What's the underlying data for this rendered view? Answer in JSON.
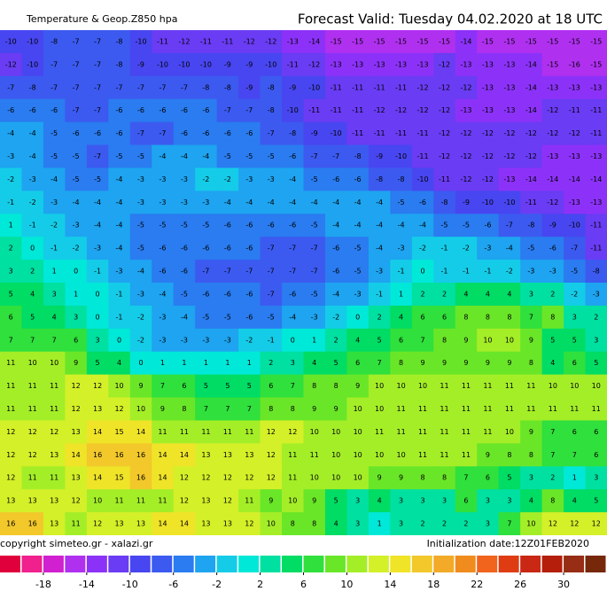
{
  "header": {
    "title": "Temperature & Geop.Z850 hpa",
    "forecast": "Forecast Valid:  Tuesday 04.02.2020 at 18 UTC"
  },
  "map": {
    "rows": [
      [
        -10,
        -10,
        -8,
        -7,
        -7,
        -8,
        -10,
        -11,
        -12,
        -11,
        -11,
        -12,
        -12,
        -13,
        -14,
        -15,
        -15,
        -15,
        -15,
        -15,
        -15,
        -14,
        -15,
        -15,
        -15,
        -15,
        -15,
        -15
      ],
      [
        -12,
        -10,
        -7,
        -7,
        -7,
        -8,
        -9,
        -10,
        -10,
        -10,
        -9,
        -9,
        -10,
        -11,
        -12,
        -13,
        -13,
        -13,
        -13,
        -13,
        -12,
        -13,
        -13,
        -13,
        -14,
        -15,
        -16,
        -15
      ],
      [
        -7,
        -8,
        -7,
        -7,
        -7,
        -7,
        -7,
        -7,
        -7,
        -8,
        -8,
        -9,
        -8,
        -9,
        -10,
        -11,
        -11,
        -11,
        -11,
        -12,
        -12,
        -12,
        -13,
        -13,
        -14,
        -13,
        -13,
        -13
      ],
      [
        -6,
        -6,
        -6,
        -7,
        -7,
        -6,
        -6,
        -6,
        -6,
        -6,
        -7,
        -7,
        -8,
        -10,
        -11,
        -11,
        -11,
        -12,
        -12,
        -12,
        -12,
        -13,
        -13,
        -13,
        -14,
        -12,
        -11,
        -11
      ],
      [
        -4,
        -4,
        -5,
        -6,
        -6,
        -6,
        -7,
        -7,
        -6,
        -6,
        -6,
        -6,
        -7,
        -8,
        -9,
        -10,
        -11,
        -11,
        -11,
        -11,
        -12,
        -12,
        -12,
        -12,
        -12,
        -12,
        -12,
        -11
      ],
      [
        -3,
        -4,
        -5,
        -5,
        -7,
        -5,
        -5,
        -4,
        -4,
        -4,
        -5,
        -5,
        -5,
        -6,
        -7,
        -7,
        -8,
        -9,
        -10,
        -11,
        -12,
        -12,
        -12,
        -12,
        -12,
        -13,
        -13,
        -13
      ],
      [
        -2,
        -3,
        -4,
        -5,
        -5,
        -4,
        -3,
        -3,
        -3,
        -2,
        -2,
        -3,
        -3,
        -4,
        -5,
        -6,
        -6,
        -8,
        -8,
        -10,
        -11,
        -12,
        -12,
        -13,
        -14,
        -14,
        -14,
        -14
      ],
      [
        -1,
        -2,
        -3,
        -4,
        -4,
        -4,
        -3,
        -3,
        -3,
        -3,
        -4,
        -4,
        -4,
        -4,
        -4,
        -4,
        -4,
        -4,
        -5,
        -6,
        -8,
        -9,
        -10,
        -10,
        -11,
        -12,
        -13,
        -13
      ],
      [
        1,
        -1,
        -2,
        -3,
        -4,
        -4,
        -5,
        -5,
        -5,
        -5,
        -6,
        -6,
        -6,
        -6,
        -5,
        -4,
        -4,
        -4,
        -4,
        -4,
        -5,
        -5,
        -6,
        -7,
        -8,
        -9,
        -10,
        -11
      ],
      [
        2,
        0,
        -1,
        -2,
        -3,
        -4,
        -5,
        -6,
        -6,
        -6,
        -6,
        -6,
        -7,
        -7,
        -7,
        -6,
        -5,
        -4,
        -3,
        -2,
        -1,
        -2,
        -3,
        -4,
        -5,
        -6,
        -7,
        -11
      ],
      [
        3,
        2,
        1,
        0,
        -1,
        -3,
        -4,
        -6,
        -6,
        -7,
        -7,
        -7,
        -7,
        -7,
        -7,
        -6,
        -5,
        -3,
        -1,
        0,
        -1,
        -1,
        -1,
        -2,
        -3,
        -3,
        -5,
        -8
      ],
      [
        5,
        4,
        3,
        1,
        0,
        -1,
        -3,
        -4,
        -5,
        -6,
        -6,
        -6,
        -7,
        -6,
        -5,
        -4,
        -3,
        -1,
        1,
        2,
        2,
        4,
        4,
        4,
        3,
        2,
        -2,
        -3
      ],
      [
        6,
        5,
        4,
        3,
        0,
        -1,
        -2,
        -3,
        -4,
        -5,
        -5,
        -6,
        -5,
        -4,
        -3,
        -2,
        0,
        2,
        4,
        6,
        6,
        8,
        8,
        8,
        7,
        8,
        3,
        2
      ],
      [
        7,
        7,
        7,
        6,
        3,
        0,
        -2,
        -3,
        -3,
        -3,
        -3,
        -2,
        -1,
        0,
        1,
        2,
        4,
        5,
        6,
        7,
        8,
        9,
        10,
        10,
        9,
        5,
        5,
        3
      ],
      [
        11,
        10,
        10,
        9,
        5,
        4,
        0,
        1,
        1,
        1,
        1,
        1,
        2,
        3,
        4,
        5,
        6,
        7,
        8,
        9,
        9,
        9,
        9,
        9,
        8,
        4,
        6,
        5
      ],
      [
        11,
        11,
        11,
        12,
        12,
        10,
        9,
        7,
        6,
        5,
        5,
        5,
        6,
        7,
        8,
        8,
        9,
        10,
        10,
        10,
        11,
        11,
        11,
        11,
        11,
        10,
        10,
        10
      ],
      [
        11,
        11,
        11,
        12,
        13,
        12,
        10,
        9,
        8,
        7,
        7,
        7,
        8,
        8,
        9,
        9,
        10,
        10,
        11,
        11,
        11,
        11,
        11,
        11,
        11,
        11,
        11,
        11
      ],
      [
        12,
        12,
        12,
        13,
        14,
        15,
        14,
        11,
        11,
        11,
        11,
        11,
        12,
        12,
        10,
        10,
        10,
        11,
        11,
        11,
        11,
        11,
        11,
        10,
        9,
        7,
        6,
        6
      ],
      [
        12,
        12,
        13,
        14,
        16,
        16,
        16,
        14,
        14,
        13,
        13,
        13,
        12,
        11,
        11,
        10,
        10,
        10,
        10,
        11,
        11,
        11,
        9,
        8,
        8,
        7,
        7,
        6
      ],
      [
        12,
        11,
        11,
        13,
        14,
        15,
        16,
        14,
        12,
        12,
        12,
        12,
        12,
        11,
        10,
        10,
        10,
        9,
        9,
        8,
        8,
        7,
        6,
        5,
        3,
        2,
        1,
        3
      ],
      [
        13,
        13,
        13,
        12,
        10,
        11,
        11,
        11,
        12,
        13,
        12,
        11,
        9,
        10,
        9,
        5,
        3,
        4,
        3,
        3,
        3,
        6,
        3,
        3,
        4,
        8,
        4,
        5
      ],
      [
        16,
        16,
        13,
        11,
        12,
        13,
        13,
        14,
        14,
        13,
        13,
        12,
        10,
        8,
        8,
        4,
        3,
        1,
        3,
        2,
        2,
        2,
        3,
        7,
        10,
        12,
        12,
        12
      ]
    ]
  },
  "footer": {
    "copyright": "copyright simeteo.gr - xalazi.gr",
    "init": "Initialization date:12Z01FEB2020"
  },
  "colorbar": {
    "range": [
      -22,
      34
    ],
    "ticks": [
      -18,
      -14,
      -10,
      -6,
      -2,
      2,
      6,
      10,
      14,
      18,
      22,
      26,
      30
    ],
    "colors": [
      "#e0003c",
      "#f0208c",
      "#d020d0",
      "#b030f0",
      "#8c32f8",
      "#6a3cf4",
      "#4846f0",
      "#3c5af0",
      "#2a7cf0",
      "#1ea4f0",
      "#14cce8",
      "#00e8d8",
      "#00e0a0",
      "#00dc64",
      "#30e03c",
      "#6ae628",
      "#a4ee28",
      "#d4f028",
      "#f0e428",
      "#f2c82a",
      "#f2aa28",
      "#f08c1e",
      "#f0641e",
      "#e03c14",
      "#c82814",
      "#b41e0a",
      "#962d14",
      "#78280a"
    ]
  }
}
